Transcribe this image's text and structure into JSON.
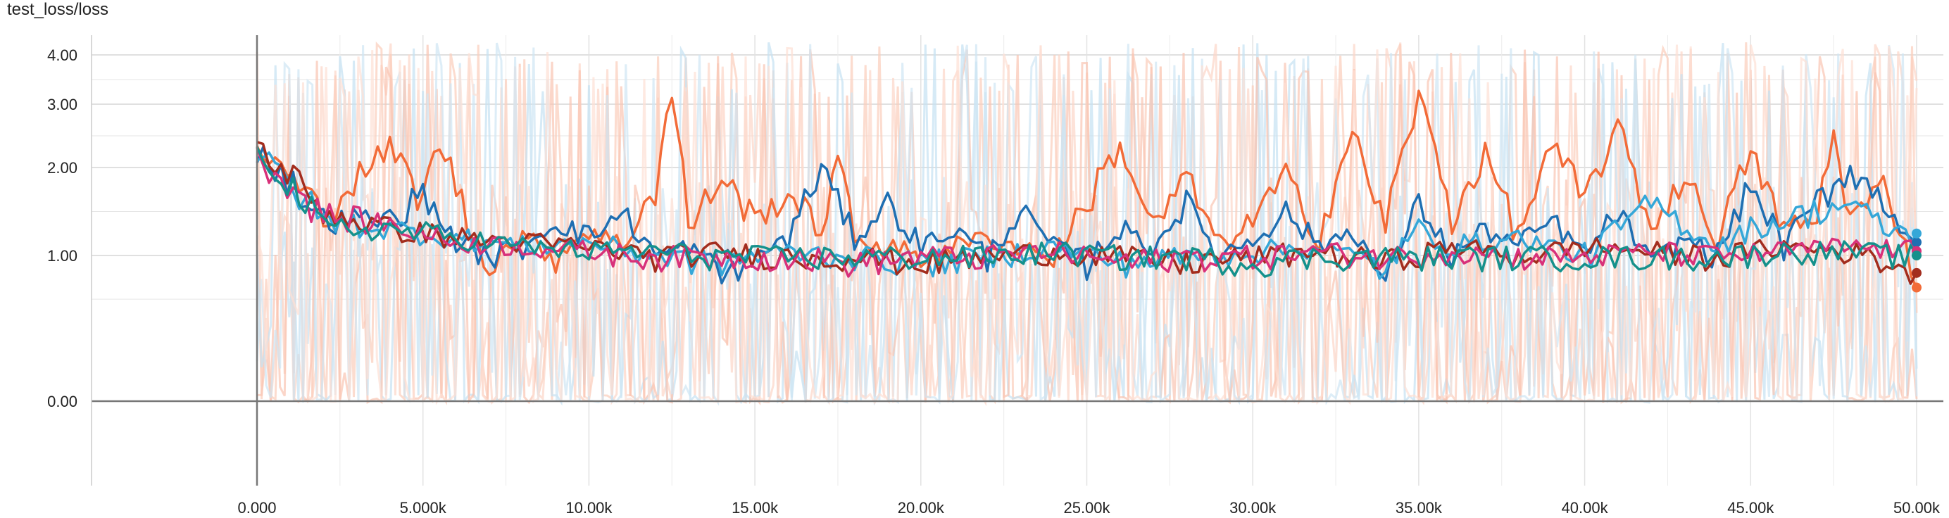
{
  "chart_data": {
    "type": "line",
    "title": "test_loss/loss",
    "xlabel": "",
    "ylabel": "",
    "y_scale": "log-like (TensorBoard log scale)",
    "xlim": [
      0,
      50000
    ],
    "ylim_display": [
      0.0,
      4.0
    ],
    "x_ticks": [
      {
        "value": 0,
        "label": "0.000"
      },
      {
        "value": 5000,
        "label": "5.000k"
      },
      {
        "value": 10000,
        "label": "10.00k"
      },
      {
        "value": 15000,
        "label": "15.00k"
      },
      {
        "value": 20000,
        "label": "20.00k"
      },
      {
        "value": 25000,
        "label": "25.00k"
      },
      {
        "value": 30000,
        "label": "30.00k"
      },
      {
        "value": 35000,
        "label": "35.00k"
      },
      {
        "value": 40000,
        "label": "40.00k"
      },
      {
        "value": 45000,
        "label": "45.00k"
      },
      {
        "value": 50000,
        "label": "50.00k"
      }
    ],
    "y_ticks": [
      {
        "value": 4.0,
        "label": "4.00"
      },
      {
        "value": 3.0,
        "label": "3.00"
      },
      {
        "value": 2.0,
        "label": "2.00"
      },
      {
        "value": 1.0,
        "label": "1.00"
      },
      {
        "value": 0.0,
        "label": "0.00"
      }
    ],
    "grid": true,
    "smoothing_shadow": true,
    "series": [
      {
        "color": "#f26b38",
        "x": [
          0,
          2000,
          4000,
          5000,
          5500,
          6500,
          7000,
          8000,
          9000,
          10000,
          11000,
          12000,
          12500,
          13000,
          14000,
          15000,
          16000,
          17000,
          17500,
          18000,
          19000,
          20000,
          22000,
          24000,
          25000,
          26000,
          27000,
          28000,
          29000,
          30000,
          31000,
          32000,
          33000,
          34000,
          35000,
          36000,
          37000,
          38000,
          39000,
          40000,
          41000,
          42000,
          43000,
          44000,
          45000,
          46000,
          47000,
          47500,
          48000,
          49000,
          50000
        ],
        "y": [
          2.3,
          1.45,
          2.3,
          1.6,
          2.4,
          1.2,
          0.95,
          1.2,
          1.0,
          1.3,
          1.1,
          1.8,
          3.2,
          1.3,
          1.9,
          1.4,
          1.7,
          1.3,
          2.1,
          1.2,
          1.1,
          1.0,
          1.2,
          1.0,
          1.6,
          2.3,
          1.3,
          1.9,
          1.1,
          1.4,
          1.9,
          1.2,
          2.5,
          1.3,
          3.1,
          1.4,
          2.2,
          1.2,
          2.3,
          1.6,
          2.6,
          1.3,
          1.9,
          1.2,
          2.2,
          1.3,
          1.4,
          2.5,
          1.4,
          1.8,
          0.78
        ]
      },
      {
        "color": "#1f6fb2",
        "x": [
          0,
          2000,
          4000,
          5000,
          6000,
          7000,
          8000,
          9000,
          10000,
          11000,
          12000,
          13000,
          14000,
          15000,
          16000,
          17000,
          17500,
          18000,
          19000,
          20000,
          21000,
          22000,
          23000,
          24000,
          25000,
          26000,
          27000,
          28000,
          29000,
          30000,
          31000,
          32000,
          33000,
          34000,
          35000,
          36000,
          37000,
          38000,
          39000,
          40000,
          41000,
          42000,
          43000,
          44000,
          45000,
          46000,
          47000,
          48000,
          49000,
          50000
        ],
        "y": [
          2.25,
          1.4,
          1.4,
          1.7,
          1.15,
          1.0,
          1.1,
          1.4,
          1.2,
          1.5,
          1.0,
          1.1,
          0.85,
          1.0,
          1.2,
          2.0,
          1.6,
          1.2,
          1.6,
          1.1,
          1.3,
          1.0,
          1.5,
          1.1,
          0.95,
          1.3,
          1.1,
          1.6,
          1.0,
          1.2,
          1.5,
          1.1,
          1.3,
          0.75,
          1.6,
          1.0,
          1.3,
          1.1,
          1.4,
          1.0,
          1.5,
          0.9,
          1.2,
          1.0,
          1.8,
          1.1,
          1.6,
          2.0,
          1.6,
          1.15
        ]
      },
      {
        "color": "#35a7d8",
        "x": [
          0,
          2000,
          4000,
          6000,
          8000,
          10000,
          12000,
          14000,
          16000,
          18000,
          20000,
          22000,
          24000,
          26000,
          28000,
          30000,
          32000,
          34000,
          35000,
          36000,
          38000,
          40000,
          42000,
          44000,
          45000,
          46000,
          48000,
          49000,
          50000
        ],
        "y": [
          2.2,
          1.4,
          1.3,
          1.2,
          1.1,
          1.15,
          1.0,
          0.95,
          1.05,
          1.0,
          0.95,
          1.0,
          1.1,
          0.95,
          1.0,
          1.05,
          1.1,
          0.9,
          1.3,
          1.1,
          1.2,
          1.0,
          1.6,
          1.1,
          1.3,
          1.4,
          1.6,
          1.3,
          1.25
        ]
      },
      {
        "color": "#a32d1e",
        "x": [
          0,
          2000,
          4000,
          6000,
          8000,
          10000,
          12000,
          14000,
          16000,
          18000,
          20000,
          22000,
          24000,
          26000,
          28000,
          30000,
          32000,
          34000,
          36000,
          38000,
          40000,
          42000,
          44000,
          46000,
          48000,
          50000
        ],
        "y": [
          2.3,
          1.5,
          1.3,
          1.2,
          1.15,
          1.1,
          1.0,
          1.05,
          1.0,
          1.0,
          0.95,
          1.0,
          1.05,
          1.0,
          0.95,
          1.0,
          1.05,
          0.95,
          1.1,
          1.0,
          1.1,
          1.05,
          1.0,
          1.1,
          1.05,
          0.88
        ]
      },
      {
        "color": "#d8317a",
        "x": [
          0,
          2000,
          4000,
          6000,
          8000,
          10000,
          12000,
          14000,
          16000,
          18000,
          20000,
          22000,
          24000,
          26000,
          28000,
          30000,
          32000,
          34000,
          36000,
          38000,
          40000,
          42000,
          44000,
          46000,
          48000,
          50000
        ],
        "y": [
          2.15,
          1.45,
          1.35,
          1.15,
          1.1,
          1.05,
          1.0,
          1.0,
          1.0,
          0.95,
          1.0,
          1.0,
          1.05,
          0.95,
          1.0,
          1.0,
          1.05,
          1.0,
          1.05,
          1.0,
          1.0,
          1.05,
          1.0,
          1.05,
          1.1,
          1.05
        ]
      },
      {
        "color": "#15918c",
        "x": [
          0,
          2000,
          4000,
          6000,
          8000,
          10000,
          12000,
          14000,
          16000,
          18000,
          20000,
          22000,
          24000,
          26000,
          28000,
          30000,
          32000,
          34000,
          36000,
          38000,
          40000,
          42000,
          44000,
          46000,
          48000,
          50000
        ],
        "y": [
          2.3,
          1.3,
          1.3,
          1.2,
          1.1,
          1.05,
          1.05,
          1.0,
          1.0,
          1.0,
          1.0,
          1.0,
          1.05,
          1.0,
          1.0,
          0.95,
          1.0,
          1.0,
          1.0,
          1.0,
          1.0,
          1.0,
          1.0,
          1.05,
          1.05,
          1.0
        ]
      }
    ]
  }
}
